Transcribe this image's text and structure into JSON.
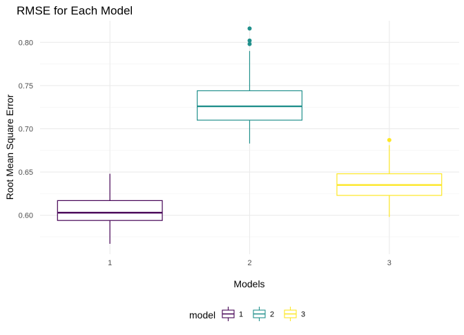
{
  "chart_data": {
    "type": "boxplot",
    "title": "RMSE for Each Model",
    "xlabel": "Models",
    "ylabel": "Root Mean Square Error",
    "categories": [
      "1",
      "2",
      "3"
    ],
    "ylim": [
      0.555,
      0.825
    ],
    "y_ticks": [
      0.6,
      0.65,
      0.7,
      0.75,
      0.8
    ],
    "y_tick_labels": [
      "0.60",
      "0.65",
      "0.70",
      "0.75",
      "0.80"
    ],
    "grid": true,
    "legend": {
      "title": "model",
      "position": "bottom"
    },
    "series": [
      {
        "name": "1",
        "color": "#440154",
        "min": 0.567,
        "q1": 0.594,
        "median": 0.603,
        "q3": 0.617,
        "max": 0.648,
        "outliers": []
      },
      {
        "name": "2",
        "color": "#21908C",
        "min": 0.683,
        "q1": 0.71,
        "median": 0.726,
        "q3": 0.744,
        "max": 0.79,
        "outliers": [
          0.798,
          0.802,
          0.816
        ]
      },
      {
        "name": "3",
        "color": "#FDE725",
        "min": 0.598,
        "q1": 0.623,
        "median": 0.635,
        "q3": 0.648,
        "max": 0.681,
        "outliers": [
          0.687
        ]
      }
    ]
  }
}
